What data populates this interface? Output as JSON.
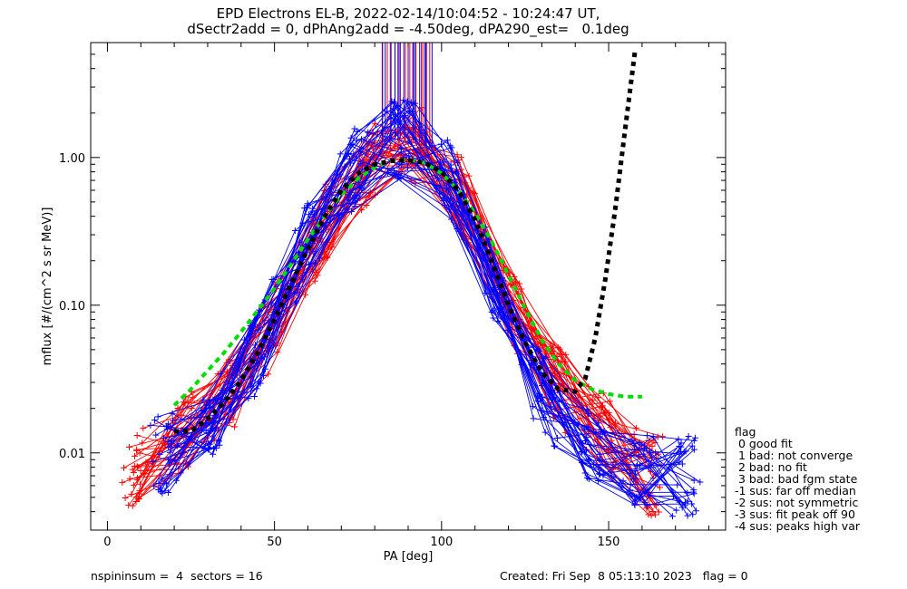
{
  "chart_data": {
    "type": "line",
    "title_line1": "EPD Electrons EL-B, 2022-02-14/10:04:52 - 10:24:47 UT,",
    "title_line2": "dSectr2add = 0, dPhAng2add = -4.50deg, dPA290_est=   0.1deg",
    "xlabel": "PA [deg]",
    "ylabel": "mflux [#/(cm^2 s sr MeV)]",
    "xlim": [
      -5,
      185
    ],
    "ylim": [
      0.003,
      6.0
    ],
    "yscale": "log",
    "xticks": [
      0,
      50,
      100,
      150
    ],
    "xtick_labels": [
      "0",
      "50",
      "100",
      "150"
    ],
    "yticks": [
      0.01,
      0.1,
      1.0
    ],
    "ytick_labels": [
      "0.01",
      "0.10",
      "1.00"
    ],
    "colors": {
      "red": "#ff0000",
      "blue": "#0000ff",
      "green": "#00dd00",
      "black": "#000000"
    },
    "red_profile": {
      "pa": [
        8,
        12,
        18,
        25,
        30,
        38,
        45,
        52,
        60,
        68,
        75,
        82,
        88,
        92,
        97,
        103,
        108,
        115,
        122,
        128,
        135,
        140,
        146,
        152,
        158,
        162
      ],
      "flux": [
        0.008,
        0.009,
        0.011,
        0.014,
        0.018,
        0.026,
        0.045,
        0.1,
        0.22,
        0.45,
        0.75,
        1.05,
        1.2,
        1.25,
        1.15,
        0.75,
        0.42,
        0.2,
        0.09,
        0.045,
        0.028,
        0.022,
        0.016,
        0.012,
        0.009,
        0.007
      ]
    },
    "blue_profile": {
      "pa": [
        18,
        24,
        30,
        38,
        45,
        52,
        60,
        68,
        75,
        82,
        88,
        92,
        97,
        103,
        108,
        115,
        122,
        128,
        135,
        140,
        146,
        152,
        158,
        165,
        172
      ],
      "flux": [
        0.01,
        0.012,
        0.016,
        0.025,
        0.05,
        0.12,
        0.28,
        0.55,
        0.9,
        1.25,
        1.35,
        1.3,
        1.15,
        0.7,
        0.35,
        0.15,
        0.06,
        0.03,
        0.018,
        0.014,
        0.011,
        0.009,
        0.008,
        0.007,
        0.007
      ]
    },
    "green_fit": {
      "pa": [
        20,
        25,
        30,
        35,
        40,
        45,
        50,
        55,
        60,
        65,
        70,
        75,
        80,
        85,
        90,
        95,
        100,
        105,
        110,
        115,
        120,
        125,
        130,
        135,
        140,
        145,
        150,
        155,
        160
      ],
      "flux": [
        0.021,
        0.027,
        0.036,
        0.048,
        0.066,
        0.092,
        0.13,
        0.19,
        0.28,
        0.4,
        0.56,
        0.72,
        0.86,
        0.95,
        0.97,
        0.92,
        0.78,
        0.6,
        0.42,
        0.27,
        0.16,
        0.095,
        0.058,
        0.04,
        0.031,
        0.027,
        0.025,
        0.024,
        0.024
      ]
    },
    "black_fit": {
      "pa": [
        20,
        25,
        30,
        35,
        40,
        45,
        50,
        55,
        60,
        65,
        70,
        75,
        80,
        85,
        90,
        95,
        100,
        105,
        110,
        115,
        120,
        125,
        130,
        135,
        140,
        143,
        146,
        149,
        152,
        155,
        158
      ],
      "flux": [
        0.014,
        0.014,
        0.017,
        0.022,
        0.031,
        0.048,
        0.08,
        0.14,
        0.24,
        0.4,
        0.6,
        0.78,
        0.9,
        0.95,
        0.96,
        0.92,
        0.8,
        0.6,
        0.38,
        0.2,
        0.1,
        0.056,
        0.035,
        0.027,
        0.026,
        0.032,
        0.06,
        0.15,
        0.45,
        1.6,
        5.5
      ]
    }
  },
  "legend": {
    "title": "flag",
    "items": [
      " 0 good fit",
      " 1 bad: not converge",
      " 2 bad: no fit",
      " 3 bad: bad fgm state",
      "-1 sus: far off median",
      "-2 sus: not symmetric",
      "-3 sus: fit peak off 90",
      "-4 sus: peaks high var"
    ]
  },
  "footer": {
    "left": "nspininsum =  4  sectors = 16",
    "right": "Created: Fri Sep  8 05:13:10 2023   flag = 0"
  }
}
